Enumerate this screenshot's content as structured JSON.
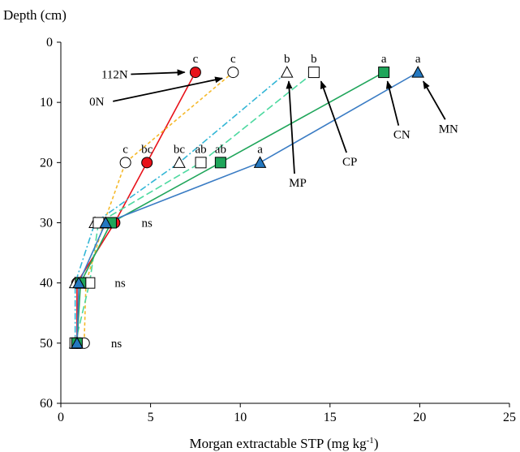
{
  "chart_data": {
    "type": "line",
    "title": "",
    "xlabel_main": "Morgan extractable STP (mg kg",
    "xlabel_sup": "-1",
    "xlabel_close": ")",
    "ylabel": "Depth (cm)",
    "xlim": [
      0,
      25
    ],
    "ylim": [
      0,
      60
    ],
    "y_inverted": true,
    "x_axis_position": "bottom",
    "grid": false,
    "legend": "none",
    "x_ticks": [
      "0",
      "5",
      "10",
      "15",
      "20",
      "25"
    ],
    "y_ticks": [
      "0",
      "10",
      "20",
      "30",
      "40",
      "50",
      "60"
    ],
    "series": [
      {
        "name": "112N",
        "marker": "circle",
        "fill": "#e8121a",
        "line_color": "#e8121a",
        "dash": "solid",
        "points": [
          [
            7.5,
            5
          ],
          [
            4.8,
            20
          ],
          [
            3.0,
            30
          ],
          [
            0.9,
            40
          ],
          [
            0.9,
            50
          ]
        ]
      },
      {
        "name": "0N",
        "marker": "circle",
        "fill": "#ffffff",
        "line_color": "#f5b92a",
        "dash": "dashed",
        "points": [
          [
            9.6,
            5
          ],
          [
            3.6,
            20
          ],
          [
            2.4,
            30
          ],
          [
            1.4,
            40
          ],
          [
            1.3,
            50
          ]
        ]
      },
      {
        "name": "MP",
        "marker": "triangle",
        "fill": "#ffffff",
        "line_color": "#33b6d6",
        "dash": "dashdot",
        "points": [
          [
            12.6,
            5
          ],
          [
            6.6,
            20
          ],
          [
            1.9,
            30
          ],
          [
            0.8,
            40
          ],
          [
            0.8,
            50
          ]
        ]
      },
      {
        "name": "CP",
        "marker": "square",
        "fill": "#ffffff",
        "line_color": "#4dd9a0",
        "dash": "longdash",
        "points": [
          [
            14.1,
            5
          ],
          [
            7.8,
            20
          ],
          [
            2.1,
            30
          ],
          [
            1.6,
            40
          ],
          [
            0.8,
            50
          ]
        ]
      },
      {
        "name": "CN",
        "marker": "square",
        "fill": "#1fa55a",
        "line_color": "#1fa55a",
        "dash": "solid",
        "points": [
          [
            18.0,
            5
          ],
          [
            8.9,
            20
          ],
          [
            2.8,
            30
          ],
          [
            1.1,
            40
          ],
          [
            0.9,
            50
          ]
        ]
      },
      {
        "name": "MN",
        "marker": "triangle",
        "fill": "#2478c0",
        "line_color": "#3a7cc4",
        "dash": "solid",
        "points": [
          [
            19.9,
            5
          ],
          [
            11.1,
            20
          ],
          [
            2.5,
            30
          ],
          [
            1.0,
            40
          ],
          [
            0.9,
            50
          ]
        ]
      }
    ],
    "significance_letters": [
      {
        "text": "c",
        "x": 7.5,
        "y": 5
      },
      {
        "text": "c",
        "x": 9.6,
        "y": 5
      },
      {
        "text": "b",
        "x": 12.6,
        "y": 5
      },
      {
        "text": "b",
        "x": 14.1,
        "y": 5
      },
      {
        "text": "a",
        "x": 18.0,
        "y": 5
      },
      {
        "text": "a",
        "x": 19.9,
        "y": 5
      },
      {
        "text": "c",
        "x": 3.6,
        "y": 20
      },
      {
        "text": "bc",
        "x": 4.8,
        "y": 20
      },
      {
        "text": "bc",
        "x": 6.6,
        "y": 20
      },
      {
        "text": "ab",
        "x": 7.8,
        "y": 20
      },
      {
        "text": "ab",
        "x": 8.9,
        "y": 20
      },
      {
        "text": "a",
        "x": 11.1,
        "y": 20
      }
    ],
    "ns_labels": [
      {
        "text": "ns",
        "x": 4.5,
        "y": 30
      },
      {
        "text": "ns",
        "x": 3.0,
        "y": 40
      },
      {
        "text": "ns",
        "x": 2.8,
        "y": 50
      }
    ],
    "annotations": [
      {
        "text": "112N",
        "label_x": 3.0,
        "label_y": 6,
        "arrow_to": [
          6.9,
          5
        ]
      },
      {
        "text": "0N",
        "label_x": 2.0,
        "label_y": 10.5,
        "arrow_to": [
          9.0,
          6
        ]
      },
      {
        "text": "MP",
        "label_x": 13.2,
        "label_y": 24,
        "arrow_to": [
          12.7,
          6.5
        ]
      },
      {
        "text": "CP",
        "label_x": 16.1,
        "label_y": 20.5,
        "arrow_to": [
          14.5,
          6.5
        ]
      },
      {
        "text": "CN",
        "label_x": 19.0,
        "label_y": 16,
        "arrow_to": [
          18.2,
          6.5
        ]
      },
      {
        "text": "MN",
        "label_x": 21.6,
        "label_y": 15,
        "arrow_to": [
          20.2,
          6.5
        ]
      }
    ]
  }
}
